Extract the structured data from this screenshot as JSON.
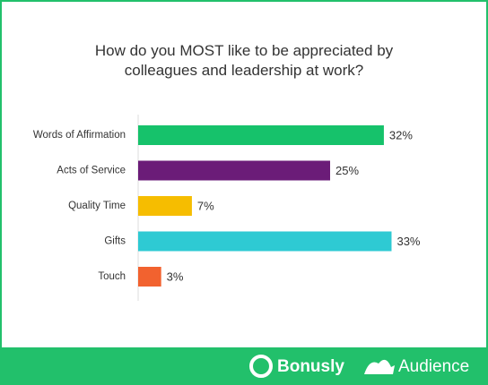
{
  "chart_data": {
    "type": "bar",
    "orientation": "horizontal",
    "title": "How do you MOST like to be appreciated by colleagues and leadership at work?",
    "categories": [
      "Words of Affirmation",
      "Acts of Service",
      "Quality Time",
      "Gifts",
      "Touch"
    ],
    "values": [
      32,
      25,
      7,
      33,
      3
    ],
    "value_labels": [
      "32%",
      "25%",
      "7%",
      "33%",
      "3%"
    ],
    "colors": [
      "#16c26b",
      "#6b1c78",
      "#f6bd00",
      "#2ecad3",
      "#f2622f"
    ]
  },
  "footer": {
    "brands": [
      "Bonusly",
      "Audience"
    ]
  }
}
